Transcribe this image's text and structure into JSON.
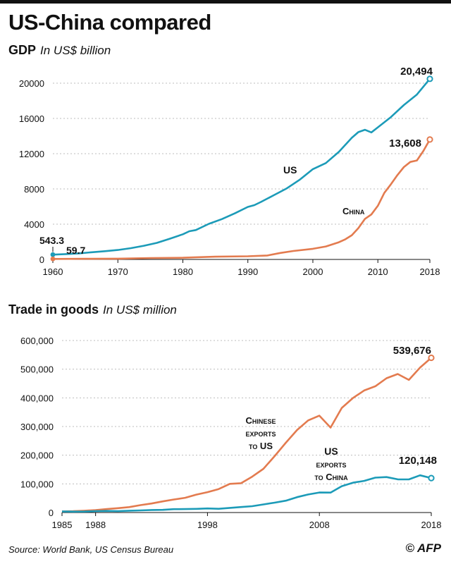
{
  "header": {
    "title": "US-China compared"
  },
  "footer": {
    "source": "Source: World Bank, US Census Bureau",
    "credit": "© AFP"
  },
  "colors": {
    "us": "#1c9bb8",
    "china": "#e37b4f"
  },
  "chart_data": [
    {
      "type": "line",
      "title": "GDP",
      "unit_label": "In US$ billion",
      "xlim": [
        1960,
        2018
      ],
      "ylim": [
        0,
        20000
      ],
      "x_ticks": [
        "1960",
        "1970",
        "1980",
        "1990",
        "2000",
        "2010",
        "2018"
      ],
      "y_ticks": [
        "0",
        "4000",
        "8000",
        "12000",
        "16000",
        "20000"
      ],
      "grid": true,
      "series": [
        {
          "name": "US",
          "color": "#1c9bb8",
          "x": [
            1960,
            1962,
            1964,
            1966,
            1968,
            1970,
            1972,
            1974,
            1976,
            1978,
            1980,
            1981,
            1982,
            1984,
            1986,
            1988,
            1990,
            1991,
            1992,
            1994,
            1996,
            1998,
            2000,
            2002,
            2004,
            2006,
            2007,
            2008,
            2009,
            2010,
            2012,
            2014,
            2016,
            2018
          ],
          "y": [
            543.3,
            605,
            685,
            815,
            940,
            1073,
            1280,
            1550,
            1880,
            2350,
            2857,
            3200,
            3340,
            4040,
            4580,
            5230,
            5960,
            6160,
            6520,
            7290,
            8070,
            9060,
            10250,
            10940,
            12210,
            13810,
            14450,
            14710,
            14420,
            14990,
            16150,
            17520,
            18710,
            20494
          ]
        },
        {
          "name": "China",
          "color": "#e37b4f",
          "x": [
            1960,
            1965,
            1970,
            1975,
            1980,
            1985,
            1990,
            1993,
            1995,
            1997,
            2000,
            2002,
            2004,
            2005,
            2006,
            2007,
            2008,
            2009,
            2010,
            2011,
            2012,
            2013,
            2014,
            2015,
            2016,
            2017,
            2018
          ],
          "y": [
            59.7,
            70,
            92,
            163,
            191,
            309,
            361,
            445,
            734,
            962,
            1211,
            1471,
            1955,
            2286,
            2752,
            3550,
            4594,
            5102,
            6087,
            7552,
            8532,
            9570,
            10476,
            11062,
            11233,
            12310,
            13608
          ]
        }
      ],
      "annotations": {
        "us_start": "543.3",
        "china_start": "59.7",
        "us_end": "20,494",
        "china_end": "13,608",
        "us_label": "US",
        "china_label": "China"
      }
    },
    {
      "type": "line",
      "title": "Trade in goods",
      "unit_label": "In US$ million",
      "xlim": [
        1985,
        2018
      ],
      "ylim": [
        0,
        600000
      ],
      "x_ticks": [
        "1985",
        "1988",
        "1998",
        "2008",
        "2018"
      ],
      "y_ticks": [
        "0",
        "100,000",
        "200,000",
        "300,000",
        "400,000",
        "500,000",
        "600,000"
      ],
      "grid": true,
      "series": [
        {
          "name": "Chinese exports to US",
          "color": "#e37b4f",
          "x": [
            1985,
            1986,
            1987,
            1988,
            1989,
            1990,
            1991,
            1992,
            1993,
            1994,
            1995,
            1996,
            1997,
            1998,
            1999,
            2000,
            2001,
            2002,
            2003,
            2004,
            2005,
            2006,
            2007,
            2008,
            2009,
            2010,
            2011,
            2012,
            2013,
            2014,
            2015,
            2016,
            2017,
            2018
          ],
          "y": [
            3862,
            4771,
            6294,
            8511,
            11990,
            15237,
            18969,
            25728,
            31540,
            38787,
            45543,
            51513,
            62558,
            71169,
            81788,
            100018,
            102278,
            125193,
            152436,
            196682,
            243470,
            287774,
            321443,
            337773,
            296374,
            364953,
            399371,
            425619,
            440430,
            468475,
            483202,
            462420,
            505470,
            539676
          ]
        },
        {
          "name": "US exports to China",
          "color": "#1c9bb8",
          "x": [
            1985,
            1986,
            1987,
            1988,
            1989,
            1990,
            1991,
            1992,
            1993,
            1994,
            1995,
            1996,
            1997,
            1998,
            1999,
            2000,
            2001,
            2002,
            2003,
            2004,
            2005,
            2006,
            2007,
            2008,
            2009,
            2010,
            2011,
            2012,
            2013,
            2014,
            2015,
            2016,
            2017,
            2018
          ],
          "y": [
            3856,
            3106,
            3497,
            5022,
            5755,
            4806,
            6278,
            7418,
            8763,
            9282,
            11754,
            11993,
            12862,
            14241,
            13111,
            16185,
            19182,
            22128,
            28368,
            34428,
            41192,
            53673,
            62937,
            69733,
            69497,
            91911,
            104122,
            110516,
            121746,
            123657,
            115873,
            115595,
            129894,
            120148
          ]
        }
      ],
      "annotations": {
        "china_end": "539,676",
        "us_end": "120,148",
        "china_label_lines": [
          "Chinese",
          "exports",
          "to US"
        ],
        "us_label_lines": [
          "US",
          "exports",
          "to China"
        ]
      }
    }
  ]
}
